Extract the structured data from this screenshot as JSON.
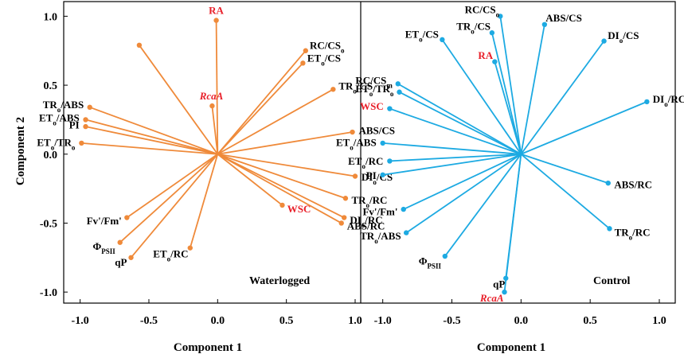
{
  "y_axis_title": "Component 2",
  "chart_data": [
    {
      "type": "scatter",
      "subtype": "pca-biplot",
      "panel_label": "Waterlogged",
      "xlabel": "Component 1",
      "ylabel": "Component 2",
      "xlim": [
        -1.05,
        1.0
      ],
      "ylim": [
        -1.08,
        1.06
      ],
      "xticks": [
        "-1.0",
        "-0.5",
        "0.0",
        "0.5",
        "1.0"
      ],
      "yticks": [
        "1.0",
        "0.5",
        "0.0",
        "-0.5",
        "-1.0"
      ],
      "color": "#ef8a3a",
      "highlight_color": "#e8202a",
      "vectors": [
        {
          "label": "RA",
          "x": -0.01,
          "y": 0.97,
          "highlight": true,
          "italic": false
        },
        {
          "label": "",
          "x": -0.57,
          "y": 0.79,
          "highlight": false,
          "italic": false
        },
        {
          "label": "RC/CSo",
          "x": 0.64,
          "y": 0.75,
          "highlight": false,
          "italic": false
        },
        {
          "label": "ETo/CS",
          "x": 0.62,
          "y": 0.66,
          "highlight": false,
          "italic": false
        },
        {
          "label": "TRo/CS",
          "x": 0.84,
          "y": 0.47,
          "highlight": false,
          "italic": false
        },
        {
          "label": "RcaA",
          "x": -0.04,
          "y": 0.35,
          "highlight": true,
          "italic": true
        },
        {
          "label": "TRo/ABS",
          "x": -0.93,
          "y": 0.34,
          "highlight": false,
          "italic": false
        },
        {
          "label": "ETo/ABS",
          "x": -0.96,
          "y": 0.25,
          "highlight": false,
          "italic": false
        },
        {
          "label": "PI",
          "x": -0.96,
          "y": 0.2,
          "highlight": false,
          "italic": false
        },
        {
          "label": "ETo/TRo",
          "x": -0.99,
          "y": 0.08,
          "highlight": false,
          "italic": false
        },
        {
          "label": "ABS/CS",
          "x": 0.98,
          "y": 0.16,
          "highlight": false,
          "italic": false
        },
        {
          "label": "DIo/CS",
          "x": 1.0,
          "y": -0.16,
          "highlight": false,
          "italic": false
        },
        {
          "label": "TRo/RC",
          "x": 0.93,
          "y": -0.32,
          "highlight": false,
          "italic": false
        },
        {
          "label": "DIo/RC",
          "x": 0.92,
          "y": -0.46,
          "highlight": false,
          "italic": false
        },
        {
          "label": "ABS/RC",
          "x": 0.9,
          "y": -0.5,
          "highlight": false,
          "italic": false
        },
        {
          "label": "WSC",
          "x": 0.47,
          "y": -0.37,
          "highlight": true,
          "italic": false
        },
        {
          "label": "Fv'/Fm'",
          "x": -0.66,
          "y": -0.46,
          "highlight": false,
          "italic": false
        },
        {
          "label": "ΦPSII",
          "x": -0.71,
          "y": -0.64,
          "highlight": false,
          "italic": false
        },
        {
          "label": "qP",
          "x": -0.63,
          "y": -0.75,
          "highlight": false,
          "italic": false
        },
        {
          "label": "ETo/RC",
          "x": -0.2,
          "y": -0.68,
          "highlight": false,
          "italic": false
        }
      ]
    },
    {
      "type": "scatter",
      "subtype": "pca-biplot",
      "panel_label": "Control",
      "xlabel": "Component 1",
      "xlim": [
        -1.05,
        1.0
      ],
      "ylim": [
        -1.08,
        1.06
      ],
      "xticks": [
        "-1.0",
        "-0.5",
        "0.0",
        "0.5",
        "1.0"
      ],
      "color": "#1daae2",
      "highlight_color": "#e8202a",
      "vectors": [
        {
          "label": "RC/CSo",
          "x": -0.15,
          "y": 1.0,
          "highlight": false,
          "italic": false
        },
        {
          "label": "ABS/CS",
          "x": 0.17,
          "y": 0.94,
          "highlight": false,
          "italic": false
        },
        {
          "label": "ETo/CS",
          "x": -0.57,
          "y": 0.83,
          "highlight": false,
          "italic": false
        },
        {
          "label": "TRo/CS",
          "x": -0.21,
          "y": 0.88,
          "highlight": false,
          "italic": false
        },
        {
          "label": "DIo/CS",
          "x": 0.6,
          "y": 0.82,
          "highlight": false,
          "italic": false
        },
        {
          "label": "RA",
          "x": -0.19,
          "y": 0.67,
          "highlight": true,
          "italic": false
        },
        {
          "label": "RC/CSm",
          "x": -0.89,
          "y": 0.51,
          "highlight": false,
          "italic": false
        },
        {
          "label": "ETo/TRo",
          "x": -0.88,
          "y": 0.45,
          "highlight": false,
          "italic": false
        },
        {
          "label": "DIo/RC",
          "x": 0.91,
          "y": 0.38,
          "highlight": false,
          "italic": false
        },
        {
          "label": "WSC",
          "x": -0.95,
          "y": 0.33,
          "highlight": true,
          "italic": false
        },
        {
          "label": "ETo/ABS",
          "x": -1.0,
          "y": 0.08,
          "highlight": false,
          "italic": false
        },
        {
          "label": "ETo/RC",
          "x": -0.95,
          "y": -0.05,
          "highlight": false,
          "italic": false
        },
        {
          "label": "PI",
          "x": -1.0,
          "y": -0.15,
          "highlight": false,
          "italic": false
        },
        {
          "label": "ABS/RC",
          "x": 0.63,
          "y": -0.21,
          "highlight": false,
          "italic": false
        },
        {
          "label": "Fv'/Fm'",
          "x": -0.85,
          "y": -0.4,
          "highlight": false,
          "italic": false
        },
        {
          "label": "TRo/RC",
          "x": 0.64,
          "y": -0.54,
          "highlight": false,
          "italic": false
        },
        {
          "label": "TRo/ABS",
          "x": -0.83,
          "y": -0.57,
          "highlight": false,
          "italic": false
        },
        {
          "label": "ΦPSII",
          "x": -0.55,
          "y": -0.74,
          "highlight": false,
          "italic": false
        },
        {
          "label": "qP",
          "x": -0.11,
          "y": -0.9,
          "highlight": false,
          "italic": false
        },
        {
          "label": "RcaA",
          "x": -0.12,
          "y": -1.0,
          "highlight": true,
          "italic": true
        }
      ]
    }
  ]
}
